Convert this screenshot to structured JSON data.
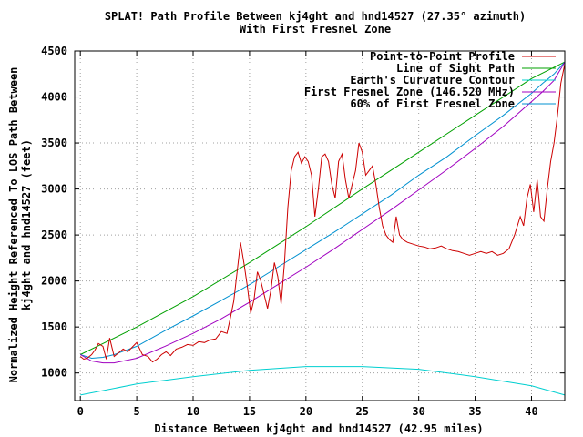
{
  "chart_data": {
    "type": "line",
    "title_line1": "SPLAT! Path Profile Between kj4ght and hnd14527 (27.35° azimuth)",
    "title_line2": "With First Fresnel Zone",
    "xlabel": "Distance Between kj4ght and hnd14527 (42.95 miles)",
    "ylabel_line1": "Normalized Height Referenced To LOS Path Between",
    "ylabel_line2": "kj4ght and hnd14527 (feet)",
    "xlim": [
      -0.5,
      42.95
    ],
    "ylim": [
      700,
      4500
    ],
    "x_ticks": [
      0,
      5,
      10,
      15,
      20,
      25,
      30,
      35,
      40
    ],
    "y_ticks": [
      1000,
      1500,
      2000,
      2500,
      3000,
      3500,
      4000,
      4500
    ],
    "grid": true,
    "legend_position": "top-right",
    "series": [
      {
        "name": "Point-to-Point Profile",
        "color": "#cc0000",
        "x": [
          0,
          0.3,
          0.6,
          1.0,
          1.3,
          1.6,
          2.0,
          2.3,
          2.6,
          3.0,
          3.4,
          3.8,
          4.2,
          4.6,
          5.0,
          5.5,
          6.0,
          6.4,
          6.8,
          7.2,
          7.6,
          8.0,
          8.5,
          9.0,
          9.5,
          10.0,
          10.5,
          11.0,
          11.5,
          12.0,
          12.5,
          13.0,
          13.3,
          13.6,
          13.9,
          14.2,
          14.5,
          14.8,
          15.1,
          15.4,
          15.7,
          16.0,
          16.3,
          16.6,
          16.9,
          17.2,
          17.5,
          17.8,
          18.1,
          18.4,
          18.7,
          19.0,
          19.3,
          19.6,
          19.9,
          20.2,
          20.5,
          20.8,
          21.1,
          21.4,
          21.7,
          22.0,
          22.3,
          22.6,
          22.9,
          23.2,
          23.5,
          23.8,
          24.1,
          24.4,
          24.7,
          25.0,
          25.3,
          25.6,
          25.9,
          26.2,
          26.5,
          26.8,
          27.1,
          27.4,
          27.7,
          28.0,
          28.3,
          28.6,
          29.0,
          29.5,
          30.0,
          30.5,
          31.0,
          31.5,
          32.0,
          32.5,
          33.0,
          33.5,
          34.0,
          34.5,
          35.0,
          35.5,
          36.0,
          36.5,
          37.0,
          37.5,
          38.0,
          38.5,
          39.0,
          39.3,
          39.6,
          39.9,
          40.2,
          40.5,
          40.8,
          41.1,
          41.4,
          41.7,
          42.0,
          42.3,
          42.6,
          42.95
        ],
        "y": [
          1180,
          1150,
          1160,
          1200,
          1250,
          1320,
          1290,
          1150,
          1380,
          1180,
          1220,
          1260,
          1230,
          1280,
          1330,
          1200,
          1180,
          1120,
          1150,
          1200,
          1230,
          1190,
          1260,
          1280,
          1310,
          1300,
          1340,
          1330,
          1360,
          1370,
          1450,
          1430,
          1600,
          1780,
          2100,
          2420,
          2200,
          1950,
          1650,
          1800,
          2100,
          2000,
          1850,
          1700,
          1900,
          2200,
          2050,
          1750,
          2200,
          2800,
          3200,
          3350,
          3400,
          3280,
          3350,
          3300,
          3150,
          2700,
          3000,
          3350,
          3380,
          3300,
          3050,
          2900,
          3300,
          3380,
          3100,
          2900,
          3050,
          3200,
          3500,
          3400,
          3150,
          3200,
          3250,
          3050,
          2800,
          2600,
          2500,
          2450,
          2420,
          2700,
          2500,
          2450,
          2420,
          2400,
          2380,
          2370,
          2350,
          2360,
          2380,
          2350,
          2330,
          2320,
          2300,
          2280,
          2300,
          2320,
          2300,
          2320,
          2280,
          2300,
          2350,
          2500,
          2700,
          2600,
          2900,
          3050,
          2750,
          3100,
          2700,
          2650,
          3000,
          3300,
          3500,
          3800,
          4150,
          4360
        ]
      },
      {
        "name": "Line of Sight Path",
        "color": "#00a000",
        "x": [
          0,
          5,
          10,
          15,
          20,
          25,
          30,
          35,
          40,
          42.95
        ],
        "y": [
          1200,
          1500,
          1830,
          2200,
          2590,
          3000,
          3400,
          3800,
          4200,
          4380
        ]
      },
      {
        "name": "Earth's Curvature Contour",
        "color": "#00cfd0",
        "x": [
          0,
          5,
          10,
          15,
          20,
          25,
          30,
          35,
          40,
          42.95
        ],
        "y": [
          760,
          880,
          960,
          1030,
          1070,
          1070,
          1040,
          960,
          860,
          760
        ]
      },
      {
        "name": "First Fresnel Zone (146.520 MHz)",
        "color": "#a000c0",
        "x": [
          0,
          1,
          2,
          3,
          5,
          7.5,
          10,
          12.5,
          15,
          17.5,
          20,
          22.5,
          25,
          27.5,
          30,
          32.5,
          35,
          37.5,
          40,
          41,
          42,
          42.95
        ],
        "y": [
          1200,
          1130,
          1110,
          1110,
          1160,
          1290,
          1430,
          1590,
          1770,
          1960,
          2150,
          2350,
          2560,
          2770,
          2990,
          3210,
          3440,
          3680,
          3950,
          4060,
          4180,
          4380
        ]
      },
      {
        "name": "60% of First Fresnel Zone",
        "color": "#0090d0",
        "x": [
          0,
          1,
          2,
          3,
          5,
          7.5,
          10,
          12.5,
          15,
          17.5,
          20,
          22.5,
          25,
          27.5,
          30,
          32.5,
          35,
          37.5,
          40,
          41,
          42,
          42.95
        ],
        "y": [
          1200,
          1160,
          1170,
          1200,
          1290,
          1460,
          1620,
          1790,
          1960,
          2150,
          2340,
          2530,
          2730,
          2930,
          3150,
          3350,
          3580,
          3800,
          4040,
          4150,
          4250,
          4380
        ]
      }
    ]
  }
}
